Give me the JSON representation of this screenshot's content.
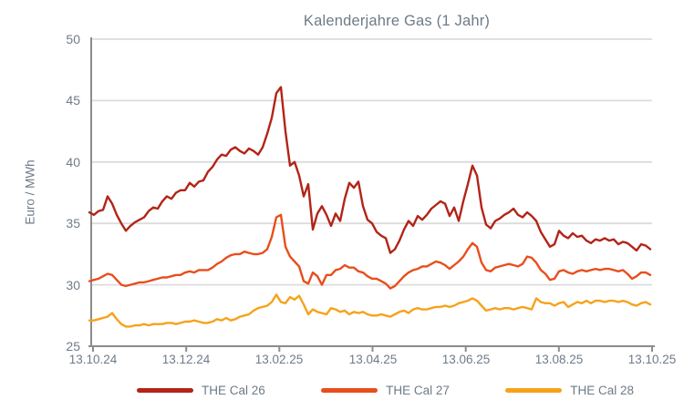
{
  "colors": {
    "cal26": "#b22417",
    "cal27": "#e84e1c",
    "cal28": "#f6a21a",
    "text": "#6e7b89",
    "gridline": "#dcdcdc",
    "axis": "#8c8c8c"
  },
  "chart_data": {
    "type": "line",
    "title": "Kalenderjahre Gas (1 Jahr)",
    "xlabel": "",
    "ylabel": "Euro / MWh",
    "ylim": [
      25,
      50
    ],
    "yticks": [
      25,
      30,
      35,
      40,
      45,
      50
    ],
    "grid": "horizontal",
    "legend_position": "bottom",
    "x_tick_labels": [
      "13.10.24",
      "13.12.24",
      "13.02.25",
      "13.04.25",
      "13.06.25",
      "13.08.25",
      "13.10.25"
    ],
    "series": [
      {
        "name": "THE Cal 26",
        "color": "#b22417",
        "values": [
          35.9,
          35.7,
          36.0,
          36.1,
          37.2,
          36.6,
          35.7,
          35.0,
          34.4,
          34.8,
          35.1,
          35.3,
          35.5,
          36.0,
          36.3,
          36.2,
          36.8,
          37.2,
          37.0,
          37.5,
          37.7,
          37.7,
          38.3,
          38.0,
          38.4,
          38.5,
          39.2,
          39.6,
          40.2,
          40.6,
          40.5,
          41.0,
          41.2,
          40.9,
          40.7,
          41.1,
          40.9,
          40.6,
          41.2,
          42.3,
          43.6,
          45.6,
          46.1,
          42.5,
          39.7,
          40.0,
          38.9,
          37.2,
          38.2,
          34.5,
          35.8,
          36.4,
          35.7,
          34.8,
          35.8,
          35.2,
          37.0,
          38.3,
          37.9,
          38.4,
          36.4,
          35.3,
          35.0,
          34.3,
          34.0,
          33.8,
          32.6,
          32.9,
          33.6,
          34.5,
          35.2,
          34.8,
          35.6,
          35.3,
          35.7,
          36.2,
          36.5,
          36.8,
          36.6,
          35.6,
          36.3,
          35.2,
          36.8,
          38.2,
          39.7,
          38.9,
          36.3,
          34.9,
          34.6,
          35.2,
          35.4,
          35.7,
          35.9,
          36.2,
          35.7,
          35.5,
          35.9,
          35.6,
          35.2,
          34.3,
          33.7,
          33.1,
          33.3,
          34.4,
          34.0,
          33.8,
          34.2,
          33.9,
          34.0,
          33.6,
          33.4,
          33.7,
          33.6,
          33.8,
          33.6,
          33.7,
          33.3,
          33.5,
          33.4,
          33.1,
          32.8,
          33.3,
          33.2,
          32.9
        ]
      },
      {
        "name": "THE Cal 27",
        "color": "#e84e1c",
        "values": [
          30.3,
          30.4,
          30.5,
          30.7,
          30.9,
          30.8,
          30.4,
          30.0,
          29.9,
          30.0,
          30.1,
          30.2,
          30.2,
          30.3,
          30.4,
          30.5,
          30.6,
          30.6,
          30.7,
          30.8,
          30.8,
          31.0,
          31.1,
          31.0,
          31.2,
          31.2,
          31.2,
          31.4,
          31.7,
          31.9,
          32.2,
          32.4,
          32.5,
          32.5,
          32.7,
          32.6,
          32.5,
          32.5,
          32.6,
          32.9,
          33.9,
          35.5,
          35.7,
          33.1,
          32.3,
          31.9,
          31.5,
          30.3,
          30.1,
          31.0,
          30.7,
          30.0,
          30.8,
          30.8,
          31.2,
          31.3,
          31.6,
          31.4,
          31.4,
          31.1,
          31.0,
          30.7,
          30.5,
          30.5,
          30.3,
          30.1,
          29.7,
          29.9,
          30.3,
          30.7,
          31.0,
          31.2,
          31.3,
          31.5,
          31.5,
          31.7,
          31.9,
          31.8,
          31.6,
          31.3,
          31.6,
          31.9,
          32.3,
          32.9,
          33.4,
          33.1,
          31.8,
          31.2,
          31.1,
          31.4,
          31.5,
          31.6,
          31.7,
          31.6,
          31.5,
          31.7,
          32.3,
          32.2,
          31.8,
          31.2,
          30.9,
          30.4,
          30.5,
          31.1,
          31.2,
          31.0,
          30.9,
          31.1,
          31.2,
          31.1,
          31.2,
          31.3,
          31.2,
          31.3,
          31.3,
          31.2,
          31.1,
          31.2,
          30.9,
          30.5,
          30.7,
          31.0,
          31.0,
          30.8
        ]
      },
      {
        "name": "THE Cal 28",
        "color": "#f6a21a",
        "values": [
          27.1,
          27.1,
          27.2,
          27.3,
          27.4,
          27.7,
          27.2,
          26.8,
          26.6,
          26.6,
          26.7,
          26.7,
          26.8,
          26.7,
          26.8,
          26.8,
          26.8,
          26.9,
          26.9,
          26.8,
          26.9,
          27.0,
          27.0,
          27.1,
          27.0,
          26.9,
          26.9,
          27.0,
          27.2,
          27.1,
          27.3,
          27.1,
          27.2,
          27.4,
          27.5,
          27.6,
          27.9,
          28.1,
          28.2,
          28.3,
          28.6,
          29.2,
          28.6,
          28.5,
          29.0,
          28.8,
          29.1,
          28.4,
          27.6,
          28.0,
          27.8,
          27.7,
          27.6,
          28.1,
          28.0,
          27.8,
          27.9,
          27.6,
          27.8,
          27.7,
          27.8,
          27.6,
          27.5,
          27.5,
          27.6,
          27.5,
          27.4,
          27.6,
          27.8,
          27.9,
          27.7,
          28.0,
          28.1,
          28.0,
          28.0,
          28.1,
          28.2,
          28.2,
          28.3,
          28.2,
          28.3,
          28.5,
          28.6,
          28.7,
          28.9,
          28.7,
          28.3,
          27.9,
          28.0,
          28.1,
          28.0,
          28.1,
          28.1,
          28.0,
          28.1,
          28.2,
          28.1,
          28.0,
          28.9,
          28.6,
          28.5,
          28.5,
          28.3,
          28.5,
          28.6,
          28.2,
          28.4,
          28.6,
          28.5,
          28.7,
          28.5,
          28.7,
          28.7,
          28.6,
          28.7,
          28.7,
          28.6,
          28.7,
          28.6,
          28.4,
          28.3,
          28.5,
          28.6,
          28.4
        ]
      }
    ]
  }
}
